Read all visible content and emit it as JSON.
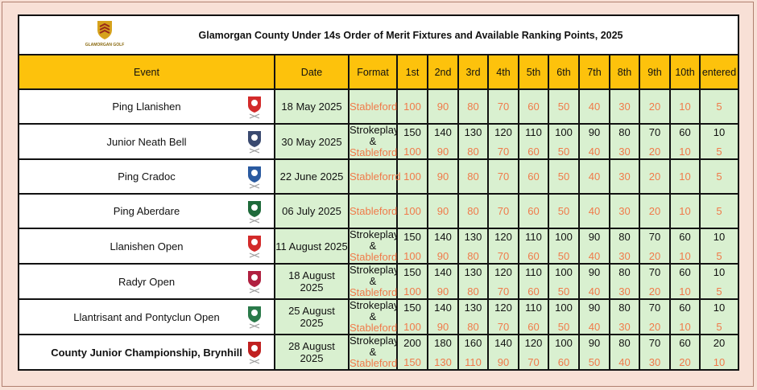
{
  "title": "Glamorgan County Under 14s Order of Merit Fixtures and Available Ranking Points, 2025",
  "logo_text": "GLAMORGAN GOLF",
  "headers": [
    "Event",
    "Date",
    "Format",
    "1st",
    "2nd",
    "3rd",
    "4th",
    "5th",
    "6th",
    "7th",
    "8th",
    "9th",
    "10th",
    "entered"
  ],
  "colors": {
    "header": "#fdc20c",
    "cell": "#d9f0d0",
    "stableford": "#f07a4a",
    "background": "#f8e0d6"
  },
  "rows": [
    {
      "event": "Ping Llanishen",
      "date": "18 May 2025",
      "format": [
        "Stableford"
      ],
      "points": [
        [
          100,
          90,
          80,
          70,
          60,
          50,
          40,
          30,
          20,
          10,
          5
        ]
      ],
      "logo": "llanishen-crest-icon",
      "logo_color": "#d32a2a"
    },
    {
      "event": "Junior Neath Bell",
      "date": "30 May 2025",
      "format": [
        "Strokeplay",
        "&",
        "Stableford"
      ],
      "points": [
        [
          150,
          140,
          130,
          120,
          110,
          100,
          90,
          80,
          70,
          60,
          10
        ],
        [
          100,
          90,
          80,
          70,
          60,
          50,
          40,
          30,
          20,
          10,
          5
        ]
      ],
      "logo": "neath-crest-icon",
      "logo_color": "#3a4a70"
    },
    {
      "event": "Ping Cradoc",
      "date": "22 June 2025",
      "format": [
        "Stableforrd"
      ],
      "points": [
        [
          100,
          90,
          80,
          70,
          60,
          50,
          40,
          30,
          20,
          10,
          5
        ]
      ],
      "logo": "cradoc-crest-icon",
      "logo_color": "#2a5aa0"
    },
    {
      "event": "Ping Aberdare",
      "date": "06 July 2025",
      "format": [
        "Stableford"
      ],
      "points": [
        [
          100,
          90,
          80,
          70,
          60,
          50,
          40,
          30,
          20,
          10,
          5
        ]
      ],
      "logo": "aberdare-crest-icon",
      "logo_color": "#1e6a3a"
    },
    {
      "event": "Llanishen Open",
      "date": "11 August 2025",
      "format": [
        "Strokeplay",
        "&",
        "Stableford"
      ],
      "points": [
        [
          150,
          140,
          130,
          120,
          110,
          100,
          90,
          80,
          70,
          60,
          10
        ],
        [
          100,
          90,
          80,
          70,
          60,
          50,
          40,
          30,
          20,
          10,
          5
        ]
      ],
      "logo": "llanishen-crest-icon",
      "logo_color": "#d32a2a"
    },
    {
      "event": "Radyr Open",
      "date": "18 August 2025",
      "format": [
        "Strokeplay",
        "&",
        "Stableford"
      ],
      "points": [
        [
          150,
          140,
          130,
          120,
          110,
          100,
          90,
          80,
          70,
          60,
          10
        ],
        [
          100,
          90,
          80,
          70,
          60,
          50,
          40,
          30,
          20,
          10,
          5
        ]
      ],
      "logo": "radyr-crest-icon",
      "logo_color": "#b02040"
    },
    {
      "event": "Llantrisant and Pontyclun Open",
      "date": "25 August 2025",
      "format": [
        "Strokeplay",
        "&",
        "Stableford"
      ],
      "points": [
        [
          150,
          140,
          130,
          120,
          110,
          100,
          90,
          80,
          70,
          60,
          10
        ],
        [
          100,
          90,
          80,
          70,
          60,
          50,
          40,
          30,
          20,
          10,
          5
        ]
      ],
      "logo": "llantrisant-crest-icon",
      "logo_color": "#2a7a4a"
    },
    {
      "event": "County Junior Championship, Brynhill",
      "date": "28 August 2025",
      "bold": true,
      "format": [
        "Strokeplay",
        "&",
        "Stableford"
      ],
      "points": [
        [
          200,
          180,
          160,
          140,
          120,
          100,
          90,
          80,
          70,
          60,
          20
        ],
        [
          150,
          130,
          110,
          90,
          70,
          60,
          50,
          40,
          30,
          20,
          10
        ]
      ],
      "logo": "brynhill-logo-icon",
      "logo_color": "#c02020"
    }
  ]
}
